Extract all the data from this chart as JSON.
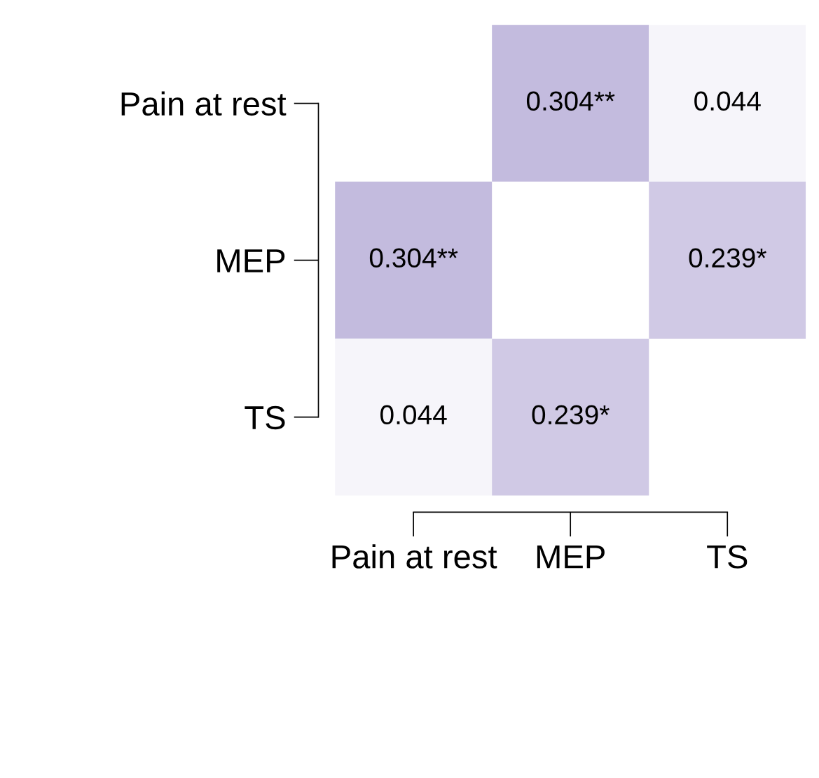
{
  "chart_data": {
    "type": "heatmap",
    "categories": [
      "Pain at rest",
      "MEP",
      "TS"
    ],
    "y_categories": [
      "Pain at rest",
      "MEP",
      "TS"
    ],
    "cells": [
      [
        null,
        0.304,
        0.044
      ],
      [
        0.304,
        null,
        0.239
      ],
      [
        0.044,
        0.239,
        null
      ]
    ],
    "cell_labels": [
      [
        null,
        "0.304**",
        "0.044"
      ],
      [
        "0.304**",
        null,
        "0.239*"
      ],
      [
        "0.044",
        "0.239*",
        null
      ]
    ],
    "color": "#c3bbde"
  }
}
